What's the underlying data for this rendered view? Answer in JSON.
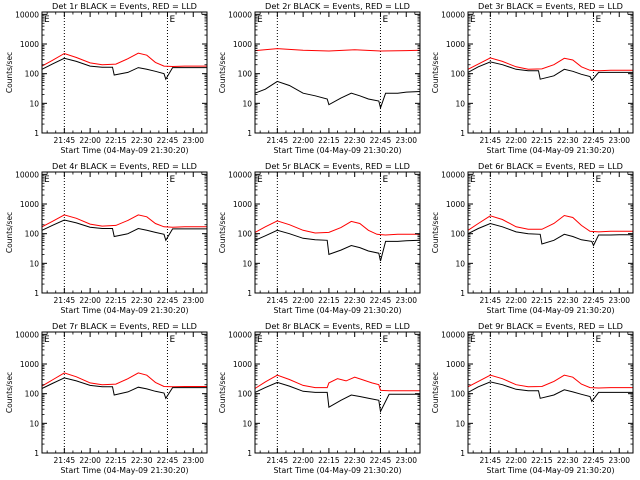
{
  "figure": {
    "colors": {
      "events": "#000000",
      "lld": "#ff0000",
      "background": "#ffffff"
    }
  },
  "chart_data": [
    {
      "type": "line",
      "detector": "1r",
      "title": "Det 1r BLACK = Events, RED = LLD",
      "xlabel": "Start Time (04-May-09 21:30:20)",
      "ylabel": "Counts/sec",
      "yscale": "log",
      "ylim": [
        1,
        12000
      ],
      "xlim": [
        "21:32",
        "23:08"
      ],
      "yticks": [
        "1",
        "10",
        "100",
        "1000",
        "10000"
      ],
      "xticks": [
        "21:45",
        "22:00",
        "22:15",
        "22:30",
        "22:45",
        "23:00"
      ],
      "vlines": [
        "21:45",
        "22:45"
      ],
      "marker": "E",
      "series": [
        {
          "color": "red",
          "x": [
            "21:32",
            "21:38",
            "21:45",
            "21:52",
            "22:00",
            "22:07",
            "22:15",
            "22:22",
            "22:28",
            "22:33",
            "22:38",
            "22:43",
            "22:48",
            "22:55",
            "23:00",
            "23:08"
          ],
          "values": [
            180,
            280,
            480,
            350,
            230,
            200,
            210,
            320,
            490,
            420,
            240,
            180,
            175,
            180,
            180,
            180
          ]
        },
        {
          "color": "black",
          "x": [
            "21:32",
            "21:38",
            "21:45",
            "21:52",
            "22:00",
            "22:07",
            "22:13",
            "22:14",
            "22:22",
            "22:28",
            "22:33",
            "22:38",
            "22:43",
            "22:44",
            "22:48",
            "22:55",
            "23:00",
            "23:08"
          ],
          "values": [
            140,
            210,
            330,
            260,
            180,
            165,
            165,
            90,
            110,
            160,
            140,
            120,
            100,
            65,
            160,
            160,
            160,
            160
          ]
        }
      ]
    },
    {
      "type": "line",
      "detector": "2r",
      "title": "Det 2r BLACK = Events, RED = LLD",
      "xlabel": "Start Time (04-May-09 21:30:20)",
      "ylabel": "Counts/sec",
      "yscale": "log",
      "ylim": [
        1,
        12000
      ],
      "xlim": [
        "21:32",
        "23:08"
      ],
      "yticks": [
        "1",
        "10",
        "100",
        "1000",
        "10000"
      ],
      "xticks": [
        "21:45",
        "22:00",
        "22:15",
        "22:30",
        "22:45",
        "23:00"
      ],
      "vlines": [
        "21:45",
        "22:45"
      ],
      "marker": "E",
      "series": [
        {
          "color": "red",
          "x": [
            "21:32",
            "21:45",
            "22:00",
            "22:15",
            "22:30",
            "22:45",
            "23:00",
            "23:08"
          ],
          "values": [
            600,
            700,
            620,
            580,
            640,
            580,
            600,
            620
          ]
        },
        {
          "color": "black",
          "x": [
            "21:32",
            "21:38",
            "21:45",
            "21:52",
            "22:00",
            "22:07",
            "22:14",
            "22:15",
            "22:22",
            "22:28",
            "22:33",
            "22:38",
            "22:44",
            "22:45",
            "22:48",
            "22:55",
            "23:00",
            "23:08"
          ],
          "values": [
            22,
            30,
            55,
            40,
            22,
            18,
            14,
            9,
            15,
            22,
            18,
            14,
            12,
            7,
            22,
            22,
            24,
            25
          ]
        }
      ]
    },
    {
      "type": "line",
      "detector": "3r",
      "title": "Det 3r BLACK = Events, RED = LLD",
      "xlabel": "Start Time (04-May-09 21:30:20)",
      "ylabel": "Counts/sec",
      "yscale": "log",
      "ylim": [
        1,
        12000
      ],
      "xlim": [
        "21:32",
        "23:08"
      ],
      "yticks": [
        "1",
        "10",
        "100",
        "1000",
        "10000"
      ],
      "xticks": [
        "21:45",
        "22:00",
        "22:15",
        "22:30",
        "22:45",
        "23:00"
      ],
      "vlines": [
        "21:45",
        "22:45"
      ],
      "marker": "E",
      "series": [
        {
          "color": "red",
          "x": [
            "21:32",
            "21:38",
            "21:45",
            "21:52",
            "22:00",
            "22:07",
            "22:15",
            "22:22",
            "22:28",
            "22:33",
            "22:38",
            "22:43",
            "22:48",
            "22:55",
            "23:00",
            "23:08"
          ],
          "values": [
            140,
            210,
            340,
            260,
            170,
            140,
            145,
            200,
            330,
            290,
            170,
            130,
            125,
            130,
            130,
            130
          ]
        },
        {
          "color": "black",
          "x": [
            "21:32",
            "21:38",
            "21:45",
            "21:52",
            "22:00",
            "22:07",
            "22:13",
            "22:14",
            "22:22",
            "22:28",
            "22:33",
            "22:38",
            "22:43",
            "22:44",
            "22:48",
            "22:55",
            "23:00",
            "23:08"
          ],
          "values": [
            110,
            170,
            250,
            200,
            140,
            125,
            125,
            65,
            85,
            140,
            120,
            95,
            80,
            60,
            110,
            110,
            110,
            110
          ]
        }
      ]
    },
    {
      "type": "line",
      "detector": "4r",
      "title": "Det 4r BLACK = Events, RED = LLD",
      "xlabel": "Start Time (04-May-09 21:30:20)",
      "ylabel": "Counts/sec",
      "yscale": "log",
      "ylim": [
        1,
        12000
      ],
      "xlim": [
        "21:32",
        "23:08"
      ],
      "yticks": [
        "1",
        "10",
        "100",
        "1000",
        "10000"
      ],
      "xticks": [
        "21:45",
        "22:00",
        "22:15",
        "22:30",
        "22:45",
        "23:00"
      ],
      "vlines": [
        "21:45",
        "22:45"
      ],
      "marker": "E",
      "series": [
        {
          "color": "red",
          "x": [
            "21:32",
            "21:38",
            "21:45",
            "21:52",
            "22:00",
            "22:07",
            "22:15",
            "22:22",
            "22:28",
            "22:33",
            "22:38",
            "22:43",
            "22:48",
            "22:55",
            "23:00",
            "23:08"
          ],
          "values": [
            170,
            260,
            430,
            330,
            210,
            180,
            190,
            280,
            430,
            370,
            220,
            170,
            165,
            170,
            170,
            170
          ]
        },
        {
          "color": "black",
          "x": [
            "21:32",
            "21:38",
            "21:45",
            "21:52",
            "22:00",
            "22:07",
            "22:13",
            "22:14",
            "22:22",
            "22:28",
            "22:33",
            "22:38",
            "22:43",
            "22:44",
            "22:48",
            "22:55",
            "23:00",
            "23:08"
          ],
          "values": [
            130,
            190,
            290,
            230,
            165,
            150,
            150,
            80,
            100,
            150,
            130,
            110,
            95,
            60,
            145,
            145,
            145,
            145
          ]
        }
      ]
    },
    {
      "type": "line",
      "detector": "5r",
      "title": "Det 5r BLACK = Events, RED = LLD",
      "xlabel": "Start Time (04-May-09 21:30:20)",
      "ylabel": "Counts/sec",
      "yscale": "log",
      "ylim": [
        1,
        12000
      ],
      "xlim": [
        "21:32",
        "23:08"
      ],
      "yticks": [
        "1",
        "10",
        "100",
        "1000",
        "10000"
      ],
      "xticks": [
        "21:45",
        "22:00",
        "22:15",
        "22:30",
        "22:45",
        "23:00"
      ],
      "vlines": [
        "21:45",
        "22:45"
      ],
      "marker": "E",
      "series": [
        {
          "color": "red",
          "x": [
            "21:32",
            "21:38",
            "21:45",
            "21:52",
            "22:00",
            "22:07",
            "22:15",
            "22:22",
            "22:28",
            "22:33",
            "22:38",
            "22:43",
            "22:48",
            "22:55",
            "23:00",
            "23:08"
          ],
          "values": [
            110,
            170,
            270,
            200,
            130,
            105,
            110,
            160,
            260,
            220,
            130,
            95,
            90,
            95,
            95,
            95
          ]
        },
        {
          "color": "black",
          "x": [
            "21:32",
            "21:38",
            "21:45",
            "21:52",
            "22:00",
            "22:07",
            "22:14",
            "22:15",
            "22:22",
            "22:28",
            "22:33",
            "22:38",
            "22:44",
            "22:45",
            "22:48",
            "22:55",
            "23:00",
            "23:08"
          ],
          "values": [
            60,
            85,
            130,
            100,
            70,
            62,
            60,
            20,
            28,
            40,
            34,
            26,
            22,
            12,
            55,
            55,
            58,
            60
          ]
        }
      ]
    },
    {
      "type": "line",
      "detector": "6r",
      "title": "Det 6r BLACK = Events, RED = LLD",
      "xlabel": "Start Time (04-May-09 21:30:20)",
      "ylabel": "Counts/sec",
      "yscale": "log",
      "ylim": [
        1,
        12000
      ],
      "xlim": [
        "21:32",
        "23:08"
      ],
      "yticks": [
        "1",
        "10",
        "100",
        "1000",
        "10000"
      ],
      "xticks": [
        "21:45",
        "22:00",
        "22:15",
        "22:30",
        "22:45",
        "23:00"
      ],
      "vlines": [
        "21:45",
        "22:45"
      ],
      "marker": "E",
      "series": [
        {
          "color": "red",
          "x": [
            "21:32",
            "21:38",
            "21:45",
            "21:52",
            "22:00",
            "22:07",
            "22:15",
            "22:22",
            "22:28",
            "22:33",
            "22:38",
            "22:43",
            "22:48",
            "22:55",
            "23:00",
            "23:08"
          ],
          "values": [
            130,
            220,
            400,
            300,
            170,
            140,
            140,
            220,
            410,
            350,
            190,
            120,
            115,
            120,
            120,
            120
          ]
        },
        {
          "color": "black",
          "x": [
            "21:32",
            "21:38",
            "21:45",
            "21:52",
            "22:00",
            "22:07",
            "22:14",
            "22:15",
            "22:22",
            "22:28",
            "22:33",
            "22:38",
            "22:44",
            "22:45",
            "22:48",
            "22:55",
            "23:00",
            "23:08"
          ],
          "values": [
            100,
            150,
            220,
            170,
            115,
            100,
            95,
            45,
            60,
            95,
            80,
            62,
            55,
            40,
            90,
            90,
            92,
            92
          ]
        }
      ]
    },
    {
      "type": "line",
      "detector": "7r",
      "title": "Det 7r BLACK = Events, RED = LLD",
      "xlabel": "Start Time (04-May-09 21:30:20)",
      "ylabel": "Counts/sec",
      "yscale": "log",
      "ylim": [
        1,
        12000
      ],
      "xlim": [
        "21:32",
        "23:08"
      ],
      "yticks": [
        "1",
        "10",
        "100",
        "1000",
        "10000"
      ],
      "xticks": [
        "21:45",
        "22:00",
        "22:15",
        "22:30",
        "22:45",
        "23:00"
      ],
      "vlines": [
        "21:45",
        "22:45"
      ],
      "marker": "E",
      "series": [
        {
          "color": "red",
          "x": [
            "21:32",
            "21:38",
            "21:45",
            "21:52",
            "22:00",
            "22:07",
            "22:15",
            "22:22",
            "22:28",
            "22:33",
            "22:38",
            "22:43",
            "22:48",
            "22:55",
            "23:00",
            "23:08"
          ],
          "values": [
            180,
            290,
            500,
            370,
            230,
            200,
            210,
            320,
            500,
            420,
            240,
            175,
            170,
            175,
            175,
            175
          ]
        },
        {
          "color": "black",
          "x": [
            "21:32",
            "21:38",
            "21:45",
            "21:52",
            "22:00",
            "22:07",
            "22:13",
            "22:14",
            "22:22",
            "22:28",
            "22:33",
            "22:38",
            "22:43",
            "22:44",
            "22:48",
            "22:55",
            "23:00",
            "23:08"
          ],
          "values": [
            150,
            220,
            340,
            270,
            190,
            170,
            170,
            90,
            115,
            165,
            145,
            120,
            105,
            70,
            160,
            160,
            160,
            160
          ]
        }
      ]
    },
    {
      "type": "line",
      "detector": "8r",
      "title": "Det 8r BLACK = Events, RED = LLD",
      "xlabel": "Start Time (04-May-09 21:30:20)",
      "ylabel": "Counts/sec",
      "yscale": "log",
      "ylim": [
        1,
        12000
      ],
      "xlim": [
        "21:32",
        "23:08"
      ],
      "yticks": [
        "1",
        "10",
        "100",
        "1000",
        "10000"
      ],
      "xticks": [
        "21:45",
        "22:00",
        "22:15",
        "22:30",
        "22:45",
        "23:00"
      ],
      "vlines": [
        "21:45",
        "22:45"
      ],
      "marker": "E",
      "series": [
        {
          "color": "red",
          "x": [
            "21:32",
            "21:38",
            "21:45",
            "21:52",
            "22:00",
            "22:07",
            "22:14",
            "22:15",
            "22:20",
            "22:25",
            "22:30",
            "22:35",
            "22:40",
            "22:44",
            "22:45",
            "22:50",
            "22:55",
            "23:00",
            "23:08"
          ],
          "values": [
            150,
            250,
            420,
            300,
            190,
            160,
            160,
            230,
            320,
            270,
            360,
            290,
            230,
            200,
            130,
            125,
            125,
            125,
            125
          ]
        },
        {
          "color": "black",
          "x": [
            "21:32",
            "21:38",
            "21:45",
            "21:52",
            "22:00",
            "22:07",
            "22:14",
            "22:15",
            "22:22",
            "22:28",
            "22:33",
            "22:38",
            "22:44",
            "22:45",
            "22:50",
            "23:08"
          ],
          "values": [
            110,
            160,
            240,
            180,
            120,
            110,
            110,
            35,
            60,
            90,
            80,
            70,
            60,
            25,
            95,
            95
          ]
        }
      ]
    },
    {
      "type": "line",
      "detector": "9r",
      "title": "Det 9r BLACK = Events, RED = LLD",
      "xlabel": "Start Time (04-May-09 21:30:20)",
      "ylabel": "Counts/sec",
      "yscale": "log",
      "ylim": [
        1,
        12000
      ],
      "xlim": [
        "21:32",
        "23:08"
      ],
      "yticks": [
        "1",
        "10",
        "100",
        "1000",
        "10000"
      ],
      "xticks": [
        "21:45",
        "22:00",
        "22:15",
        "22:30",
        "22:45",
        "23:00"
      ],
      "vlines": [
        "21:45",
        "22:45"
      ],
      "marker": "E",
      "series": [
        {
          "color": "red",
          "x": [
            "21:32",
            "21:38",
            "21:45",
            "21:52",
            "22:00",
            "22:07",
            "22:15",
            "22:22",
            "22:28",
            "22:33",
            "22:38",
            "22:43",
            "22:48",
            "22:55",
            "23:00",
            "23:08"
          ],
          "values": [
            170,
            260,
            420,
            320,
            200,
            170,
            175,
            260,
            420,
            360,
            210,
            160,
            155,
            160,
            160,
            160
          ]
        },
        {
          "color": "black",
          "x": [
            "21:32",
            "21:38",
            "21:45",
            "21:52",
            "22:00",
            "22:07",
            "22:13",
            "22:14",
            "22:22",
            "22:28",
            "22:33",
            "22:38",
            "22:43",
            "22:44",
            "22:48",
            "22:55",
            "23:00",
            "23:08"
          ],
          "values": [
            110,
            170,
            250,
            200,
            140,
            125,
            125,
            70,
            90,
            135,
            115,
            95,
            80,
            55,
            110,
            110,
            110,
            110
          ]
        }
      ]
    }
  ]
}
